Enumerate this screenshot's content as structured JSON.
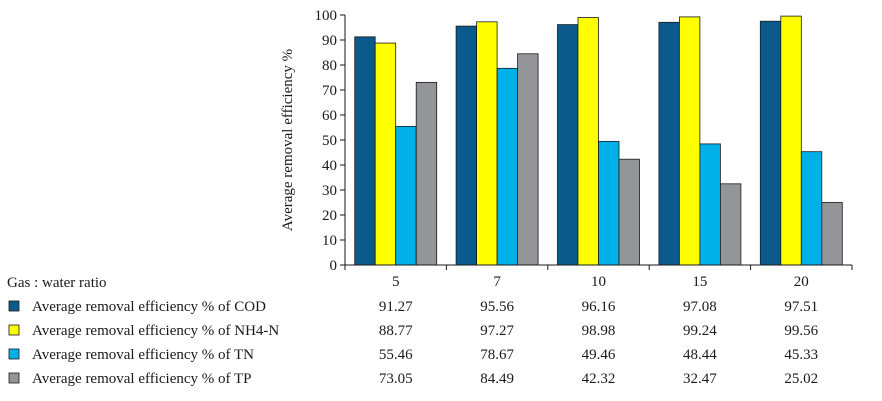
{
  "chart_data": {
    "type": "bar",
    "ylabel": "Average removal efficiency %",
    "ylim": [
      0,
      100
    ],
    "yticks": [
      0,
      10,
      20,
      30,
      40,
      50,
      60,
      70,
      80,
      90,
      100
    ],
    "grid": false,
    "table_header": "Gas : water ratio",
    "categories": [
      "5",
      "7",
      "10",
      "15",
      "20"
    ],
    "series": [
      {
        "name": "Average removal efficiency % of COD",
        "color": "#0b5a8c",
        "values": [
          91.27,
          95.56,
          96.16,
          97.08,
          97.51
        ]
      },
      {
        "name": "Average removal efficiency % of NH4-N",
        "color": "#ffff00",
        "values": [
          88.77,
          97.27,
          98.98,
          99.24,
          99.56
        ]
      },
      {
        "name": "Average removal efficiency % of TN",
        "color": "#00b0e8",
        "values": [
          55.46,
          78.67,
          49.46,
          48.44,
          45.33
        ]
      },
      {
        "name": "Average removal efficiency % of TP",
        "color": "#939598",
        "values": [
          73.05,
          84.49,
          42.32,
          32.47,
          25.02
        ]
      }
    ],
    "value_labels": [
      [
        "91.27",
        "95.56",
        "96.16",
        "97.08",
        "97.51"
      ],
      [
        "88.77",
        "97.27",
        "98.98",
        "99.24",
        "99.56"
      ],
      [
        "55.46",
        "78.67",
        "49.46",
        "48.44",
        "45.33"
      ],
      [
        "73.05",
        "84.49",
        "42.32",
        "32.47",
        "25.02"
      ]
    ]
  }
}
